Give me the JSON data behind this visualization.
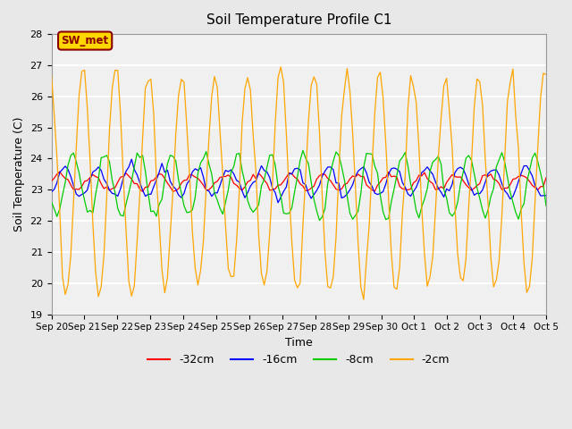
{
  "title": "Soil Temperature Profile C1",
  "xlabel": "Time",
  "ylabel": "Soil Temperature (C)",
  "ylim": [
    19.0,
    28.0
  ],
  "yticks": [
    19.0,
    20.0,
    21.0,
    22.0,
    23.0,
    24.0,
    25.0,
    26.0,
    27.0,
    28.0
  ],
  "xtick_labels": [
    "Sep 20",
    "Sep 21",
    "Sep 22",
    "Sep 23",
    "Sep 24",
    "Sep 25",
    "Sep 26",
    "Sep 27",
    "Sep 28",
    "Sep 29",
    "Sep 30",
    "Oct 1",
    "Oct 2",
    "Oct 3",
    "Oct 4",
    "Oct 5"
  ],
  "annotation_text": "SW_met",
  "annotation_color": "#8B0000",
  "annotation_bg": "#FFD700",
  "series": [
    {
      "label": "-32cm",
      "color": "#FF0000",
      "amplitude": 0.25,
      "phase": 0.0,
      "mean": 23.25,
      "noise": 0.05
    },
    {
      "label": "-16cm",
      "color": "#0000FF",
      "amplitude": 0.45,
      "phase": 0.3,
      "mean": 23.25,
      "noise": 0.07
    },
    {
      "label": "-8cm",
      "color": "#00CC00",
      "amplitude": 1.0,
      "phase": 0.8,
      "mean": 23.15,
      "noise": 0.1
    },
    {
      "label": "-2cm",
      "color": "#FFA500",
      "amplitude": 3.5,
      "phase": 1.4,
      "mean": 23.25,
      "noise": 0.15
    }
  ],
  "background_color": "#E8E8E8",
  "plot_bg_color": "#F0F0F0",
  "grid_color": "#FFFFFF",
  "legend_position": "lower center",
  "figsize": [
    6.4,
    4.8
  ],
  "dpi": 100
}
